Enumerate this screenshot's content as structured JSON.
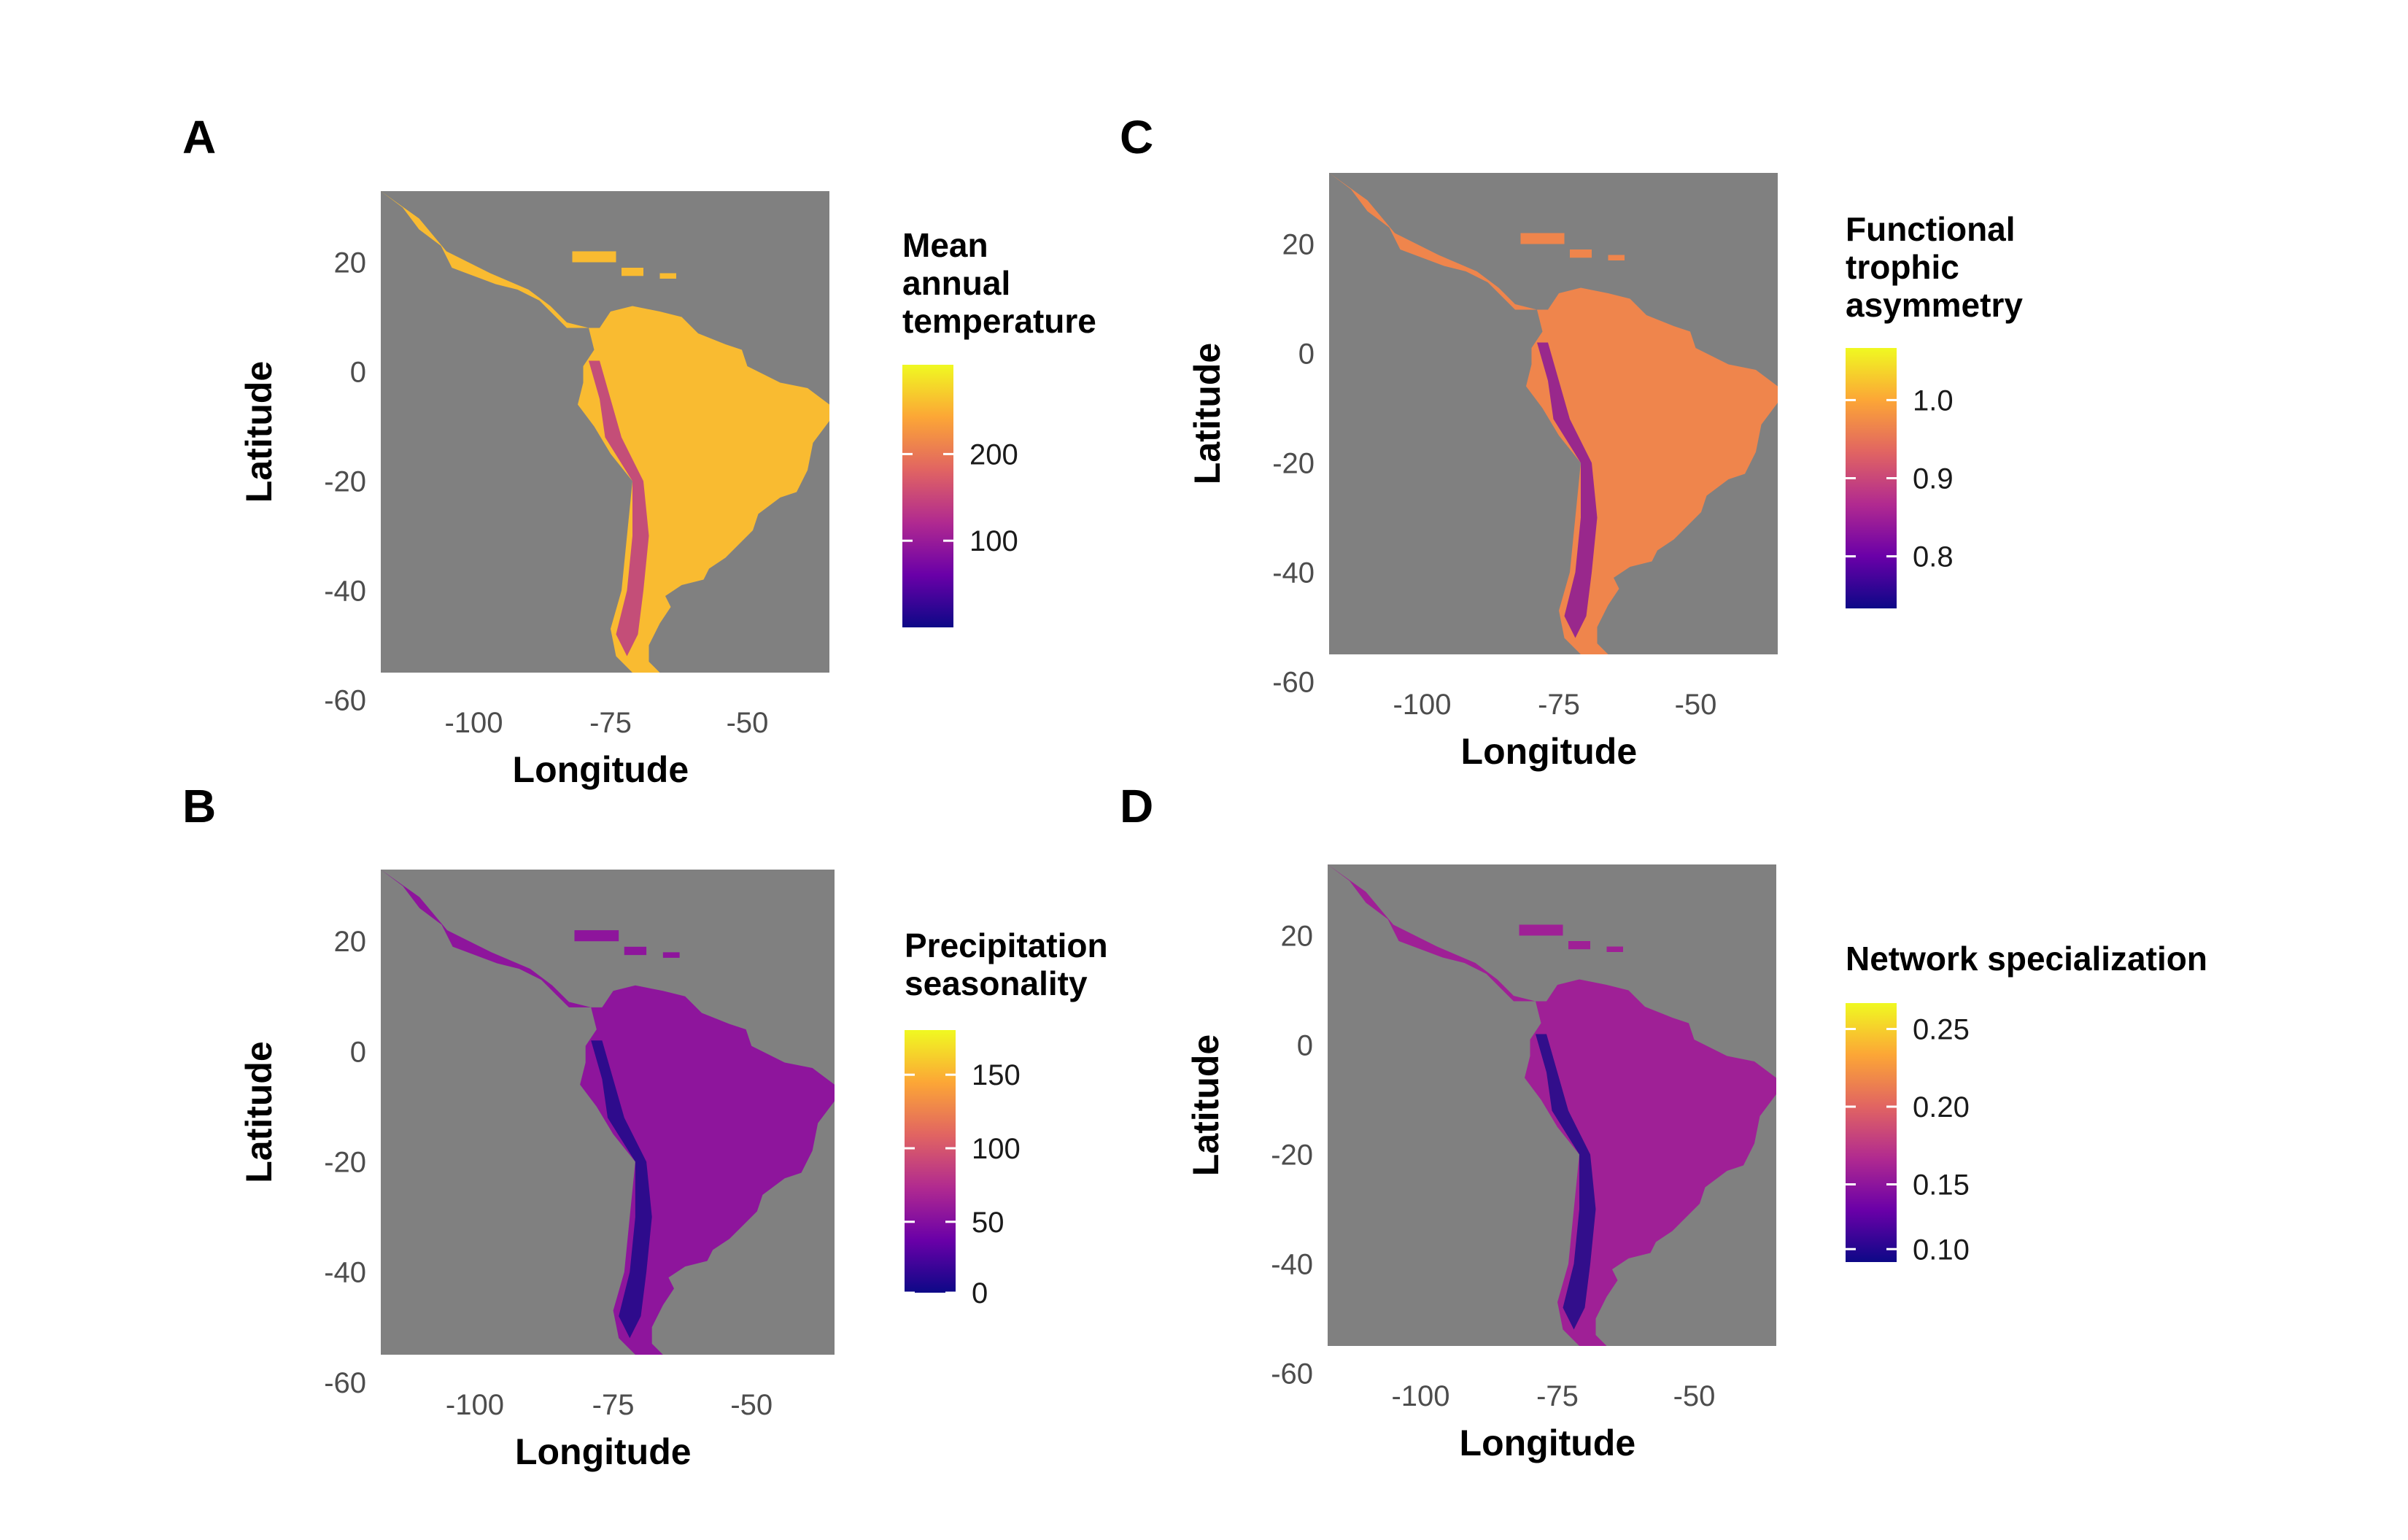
{
  "colors": {
    "panel_background": "#808080",
    "colorbar_stops": [
      "#0d0887",
      "#6a00a8",
      "#b12a90",
      "#e16462",
      "#fca636",
      "#f0f921"
    ]
  },
  "panels": [
    {
      "letter": "A",
      "legend_title_lines": [
        "Mean",
        "annual",
        "temperature"
      ],
      "legend_labels": [
        "200",
        "100"
      ],
      "legend_breaks": [
        0.66,
        0.33
      ],
      "land_level": 0.85
    },
    {
      "letter": "B",
      "legend_title_lines": [
        "Precipitation",
        "seasonality"
      ],
      "legend_labels": [
        "150",
        "100",
        "50",
        "0"
      ],
      "legend_breaks": [
        0.83,
        0.55,
        0.27,
        0.0
      ],
      "land_level": 0.3
    },
    {
      "letter": "C",
      "legend_title_lines": [
        "Functional",
        "trophic",
        "asymmetry"
      ],
      "legend_labels": [
        "1.0",
        "0.9",
        "0.8"
      ],
      "legend_breaks": [
        0.8,
        0.5,
        0.2
      ],
      "land_level": 0.7
    },
    {
      "letter": "D",
      "legend_title_lines": [
        "Network specialization"
      ],
      "legend_labels": [
        "0.25",
        "0.20",
        "0.15",
        "0.10"
      ],
      "legend_breaks": [
        0.9,
        0.6,
        0.3,
        0.05
      ],
      "land_level": 0.35
    }
  ],
  "axes": {
    "xlabel": "Longitude",
    "ylabel": "Latitude",
    "x_ticks": [
      "-100",
      "-75",
      "-50"
    ],
    "x_tick_values": [
      -100,
      -75,
      -50
    ],
    "y_ticks": [
      "20",
      "0",
      "-20",
      "-40",
      "-60"
    ],
    "y_tick_values": [
      20,
      0,
      -20,
      -40,
      -60
    ],
    "xlim": [
      -117,
      -35
    ],
    "ylim": [
      -55,
      33
    ]
  },
  "land_outline": [
    [
      -117,
      33
    ],
    [
      -110,
      28
    ],
    [
      -105,
      22
    ],
    [
      -97,
      18
    ],
    [
      -90,
      15
    ],
    [
      -86,
      12
    ],
    [
      -83,
      9
    ],
    [
      -79,
      8
    ],
    [
      -77,
      8
    ],
    [
      -75,
      11
    ],
    [
      -71,
      12
    ],
    [
      -66,
      11
    ],
    [
      -62,
      10
    ],
    [
      -59,
      7
    ],
    [
      -54,
      5
    ],
    [
      -51,
      4
    ],
    [
      -50,
      1
    ],
    [
      -44,
      -2
    ],
    [
      -39,
      -3
    ],
    [
      -35,
      -6
    ],
    [
      -35,
      -9
    ],
    [
      -38,
      -13
    ],
    [
      -39,
      -18
    ],
    [
      -41,
      -22
    ],
    [
      -44,
      -23
    ],
    [
      -48,
      -26
    ],
    [
      -49,
      -29
    ],
    [
      -52,
      -32
    ],
    [
      -54,
      -34
    ],
    [
      -57,
      -36
    ],
    [
      -58,
      -38
    ],
    [
      -62,
      -39
    ],
    [
      -65,
      -41
    ],
    [
      -64,
      -43
    ],
    [
      -66,
      -46
    ],
    [
      -68,
      -50
    ],
    [
      -68,
      -53
    ],
    [
      -66,
      -55
    ],
    [
      -71,
      -55
    ],
    [
      -74,
      -52
    ],
    [
      -75,
      -47
    ],
    [
      -73,
      -40
    ],
    [
      -72,
      -30
    ],
    [
      -71,
      -20
    ],
    [
      -75,
      -15
    ],
    [
      -78,
      -10
    ],
    [
      -81,
      -6
    ],
    [
      -80,
      -2
    ],
    [
      -80,
      1
    ],
    [
      -78,
      4
    ],
    [
      -79,
      8
    ],
    [
      -83,
      8
    ],
    [
      -86,
      11
    ],
    [
      -88,
      13
    ],
    [
      -92,
      15
    ],
    [
      -96,
      16
    ],
    [
      -104,
      19
    ],
    [
      -106,
      23
    ],
    [
      -110,
      26
    ],
    [
      -113,
      30
    ],
    [
      -117,
      33
    ]
  ]
}
